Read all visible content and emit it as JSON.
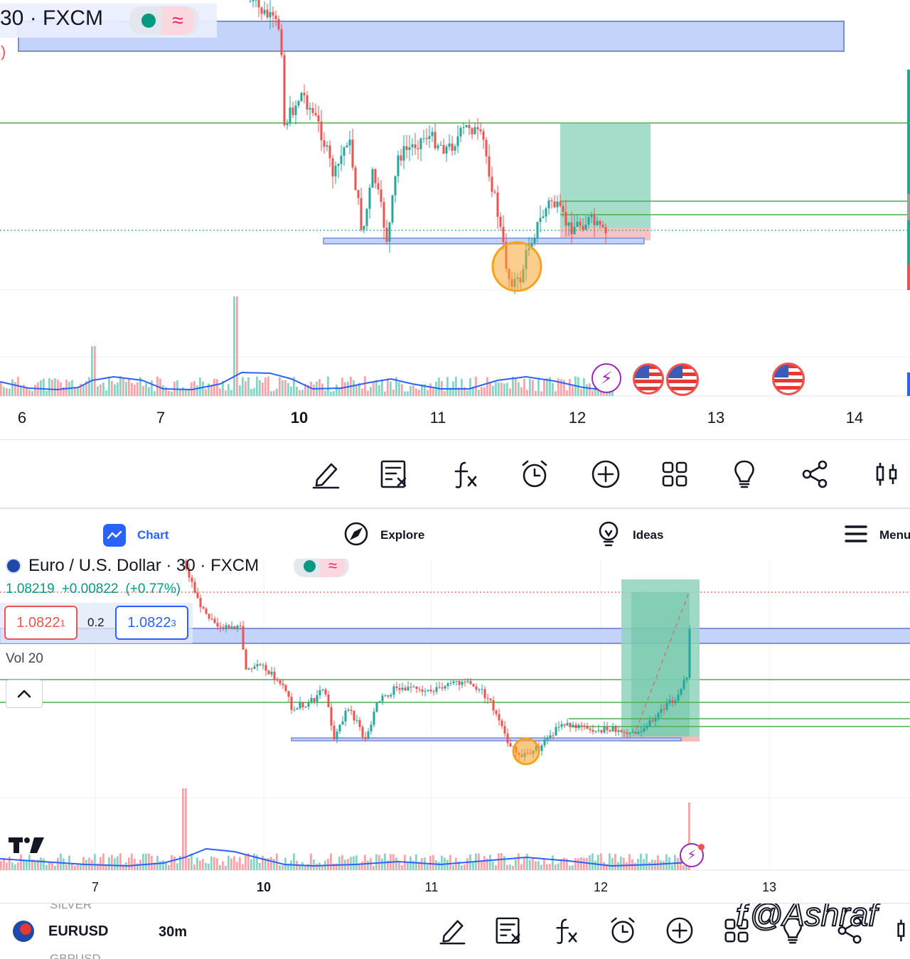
{
  "top_chart": {
    "symbol_fragment": "30 · FXCM",
    "fragment_paren": "s)",
    "x_axis_labels": [
      "6",
      "7",
      "10",
      "11",
      "12",
      "13",
      "14"
    ],
    "x_axis_bold": "10"
  },
  "top_toolbar": {
    "icons": [
      "draw-icon",
      "remove-drawings-icon",
      "indicators-icon",
      "alert-icon",
      "add-icon",
      "layout-icon",
      "ideas-icon",
      "share-icon",
      "chart-type-icon"
    ]
  },
  "bottom_nav": {
    "chart": "Chart",
    "explore": "Explore",
    "ideas": "Ideas",
    "menu": "Menu",
    "active_color": "#2962ff"
  },
  "bottom_chart": {
    "symbol_title": "Euro / U.S. Dollar · 30 · FXCM",
    "last_price": "1.08219",
    "change": "+0.00822",
    "change_pct": "(+0.77%)",
    "bid_main": "1.0822",
    "bid_sup": "1",
    "spread": "0.2",
    "ask_main": "1.0822",
    "ask_sup": "3",
    "vol_label": "Vol 20",
    "x_axis_labels": [
      "7",
      "10",
      "11",
      "12",
      "13"
    ],
    "x_axis_bold": "10"
  },
  "bottom_toolbar": {
    "watermark_above": "SILVER",
    "symbol": "EURUSD",
    "interval": "30m",
    "watermark_below": "GBPUSD",
    "user_watermark": "@Ashraf"
  },
  "colors": {
    "up": "#26a69a",
    "down": "#ef5350",
    "zone_blue": "#b7c9f7",
    "target_green": "#8fd3bd",
    "stop_red": "#f6bcbc",
    "circle_orange": "#f7a531",
    "ma_blue": "#2962ff"
  }
}
